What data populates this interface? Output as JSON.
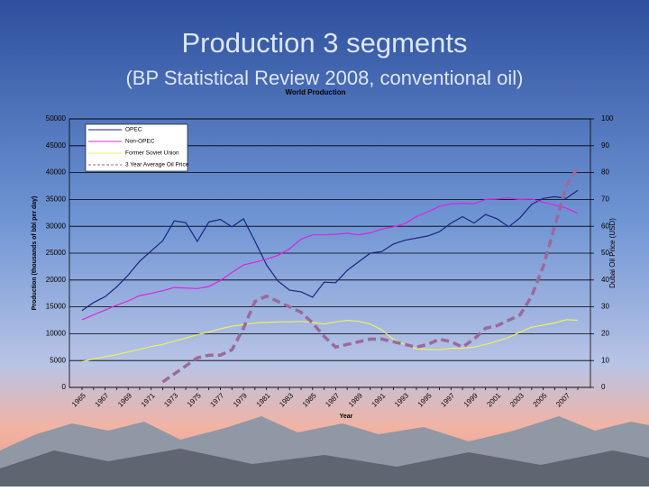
{
  "slide": {
    "title": "Production 3 segments",
    "subtitle": "(BP Statistical Review 2008, conventional oil)"
  },
  "chart_data": {
    "type": "line",
    "title": "World Production",
    "x_label": "Year",
    "y_label": "Production (thousands of bbl per day)",
    "y2_label": "Dubai Oil Price (USD)",
    "categories": [
      "1965",
      null,
      "1967",
      null,
      "1969",
      null,
      "1971",
      null,
      "1973",
      null,
      "1975",
      null,
      "1977",
      null,
      "1979",
      null,
      "1981",
      null,
      "1983",
      null,
      "1985",
      null,
      "1987",
      null,
      "1989",
      null,
      "1991",
      null,
      "1993",
      null,
      "1995",
      null,
      "1997",
      null,
      "1999",
      null,
      "2001",
      null,
      "2003",
      null,
      "2005",
      null,
      "2007",
      null
    ],
    "series": [
      {
        "name": "OPEC",
        "color": "#1a237e",
        "values": [
          14300,
          15800,
          16900,
          18700,
          20900,
          23500,
          25400,
          27300,
          31000,
          30700,
          27200,
          30800,
          31300,
          29900,
          31400,
          27200,
          22800,
          19800,
          18100,
          17800,
          16800,
          19600,
          19500,
          21800,
          23400,
          25000,
          25300,
          26700,
          27400,
          27800,
          28200,
          29000,
          30600,
          31800,
          30600,
          32200,
          31400,
          29900,
          31600,
          34100,
          35200,
          35500,
          35200,
          36700
        ]
      },
      {
        "name": "Non-OPEC",
        "color": "#e020e0",
        "values": [
          12600,
          13500,
          14400,
          15300,
          16100,
          17100,
          17500,
          18000,
          18600,
          18500,
          18400,
          18800,
          19900,
          21400,
          22800,
          23300,
          23900,
          24600,
          25800,
          27600,
          28400,
          28400,
          28500,
          28700,
          28400,
          28800,
          29500,
          29900,
          30500,
          31800,
          32700,
          33700,
          34200,
          34300,
          34200,
          35000,
          35100,
          35300,
          35000,
          35100,
          34500,
          34000,
          33400,
          32400
        ]
      },
      {
        "name": "Former Soviet Union",
        "color": "#eef060",
        "values": [
          4800,
          5300,
          5700,
          6100,
          6600,
          7100,
          7600,
          8000,
          8600,
          9200,
          9800,
          10300,
          10900,
          11400,
          11700,
          12000,
          12100,
          12200,
          12200,
          12300,
          12100,
          11800,
          12200,
          12500,
          12300,
          11800,
          10700,
          9000,
          8000,
          7200,
          7100,
          7000,
          7300,
          7300,
          7500,
          8000,
          8600,
          9300,
          10300,
          11200,
          11600,
          12000,
          12600,
          12500
        ]
      },
      {
        "name": "3 Year Average Oil Price",
        "color": "#9a6a9a",
        "axis": "y2",
        "line_style": "dashed",
        "values": [
          null,
          null,
          null,
          null,
          null,
          null,
          null,
          2,
          5,
          8,
          11,
          12,
          12,
          14,
          22,
          32,
          34,
          32,
          30,
          28,
          24,
          19,
          15,
          16,
          17,
          18,
          18,
          17,
          16,
          15,
          16,
          18,
          17,
          15,
          18,
          22,
          23,
          25,
          27,
          34,
          45,
          60,
          75,
          82
        ]
      }
    ],
    "ylim": [
      0,
      50000
    ],
    "yticks": [
      0,
      5000,
      10000,
      15000,
      20000,
      25000,
      30000,
      35000,
      40000,
      45000,
      50000
    ],
    "y2lim": [
      0,
      100
    ],
    "y2ticks": [
      0,
      10,
      20,
      30,
      40,
      50,
      60,
      70,
      80,
      90,
      100
    ],
    "grid": true,
    "legend": "top-left"
  }
}
